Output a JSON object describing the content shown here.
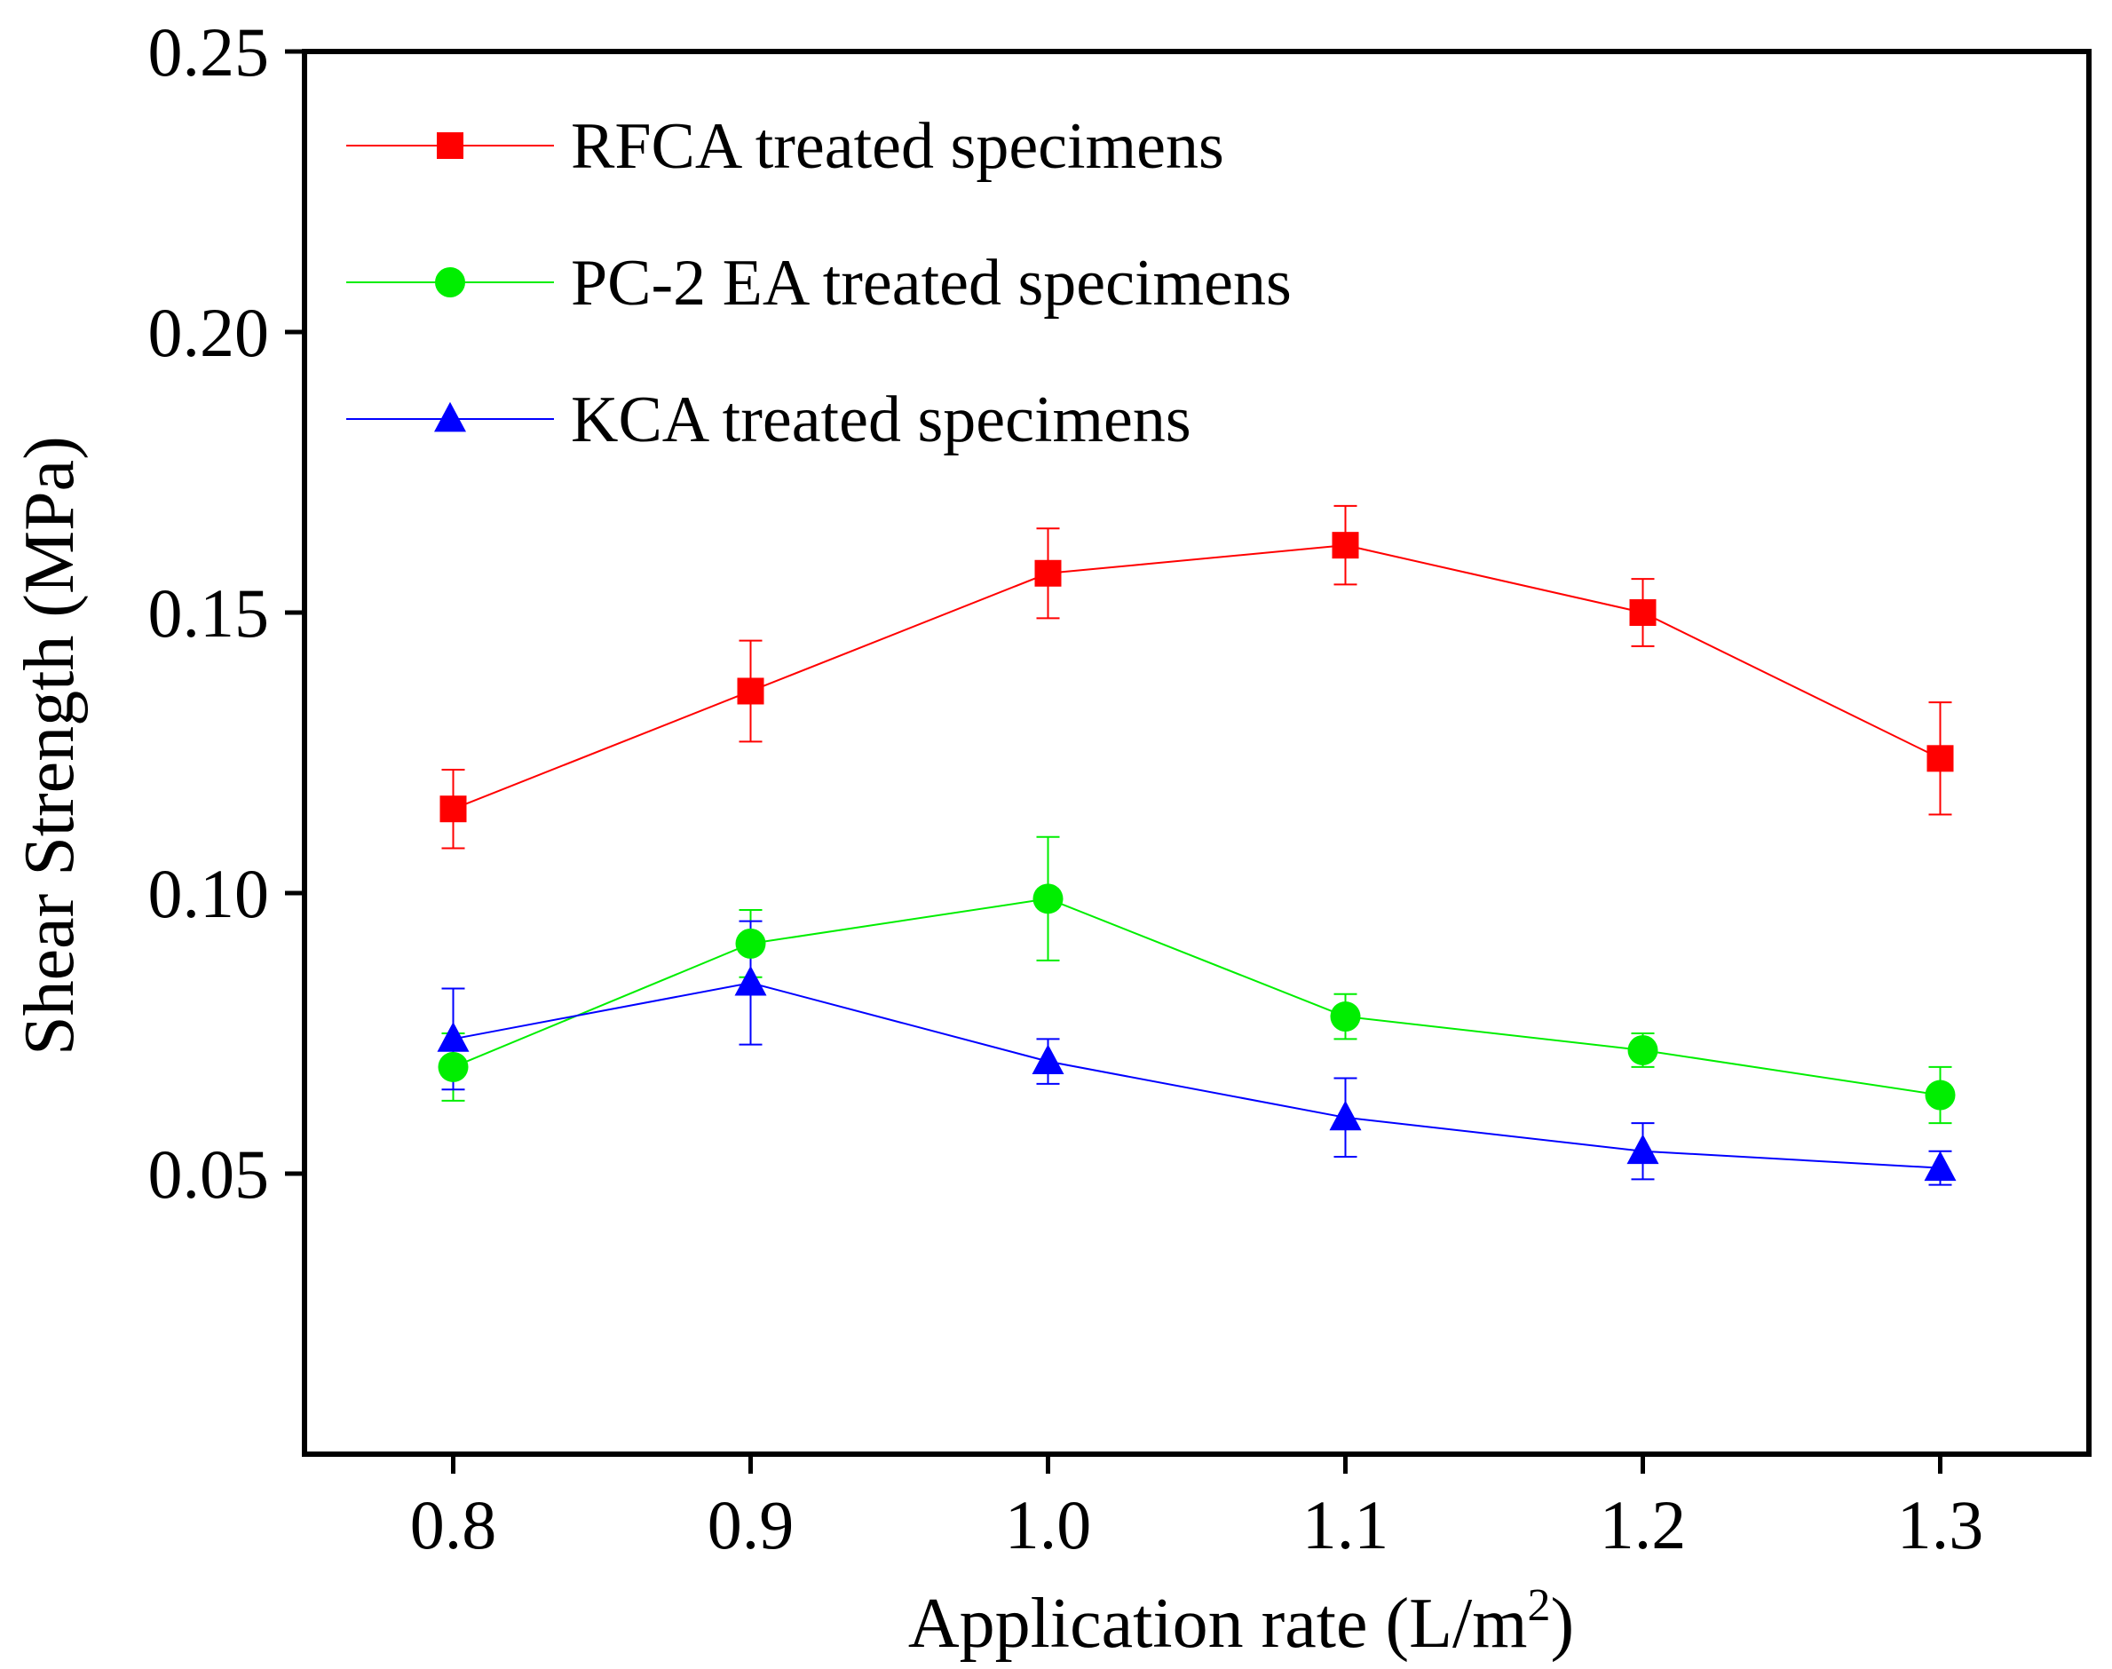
{
  "chart_data": {
    "type": "line",
    "title": "",
    "xlabel": "Application rate (L/m",
    "xlabel_superscript": "2",
    "xlabel_suffix": ")",
    "ylabel": "Shear Strength (MPa)",
    "x": [
      0.8,
      0.9,
      1.0,
      1.1,
      1.2,
      1.3
    ],
    "x_tick_labels": [
      "0.8",
      "0.9",
      "1.0",
      "1.1",
      "1.2",
      "1.3"
    ],
    "y_ticks": [
      0.05,
      0.1,
      0.15,
      0.2,
      0.25
    ],
    "y_tick_labels": [
      "0.05",
      "0.10",
      "0.15",
      "0.20",
      "0.25"
    ],
    "xlim": [
      0.75,
      1.35
    ],
    "ylim": [
      0.0,
      0.25
    ],
    "grid": false,
    "legend_position": "top-left",
    "series": [
      {
        "name": "RFCA treated specimens",
        "color": "#ff0000",
        "marker": "square",
        "values": [
          0.115,
          0.136,
          0.157,
          0.162,
          0.15,
          0.124
        ],
        "errors": [
          0.007,
          0.009,
          0.008,
          0.007,
          0.006,
          0.01
        ]
      },
      {
        "name": "PC-2 EA treated specimens",
        "color": "#00ee00",
        "marker": "circle",
        "values": [
          0.069,
          0.091,
          0.099,
          0.078,
          0.072,
          0.064
        ],
        "errors": [
          0.006,
          0.006,
          0.011,
          0.004,
          0.003,
          0.005
        ]
      },
      {
        "name": "KCA treated specimens",
        "color": "#0000ff",
        "marker": "triangle",
        "values": [
          0.074,
          0.084,
          0.07,
          0.06,
          0.054,
          0.051
        ],
        "errors": [
          0.009,
          0.011,
          0.004,
          0.007,
          0.005,
          0.003
        ]
      }
    ]
  }
}
